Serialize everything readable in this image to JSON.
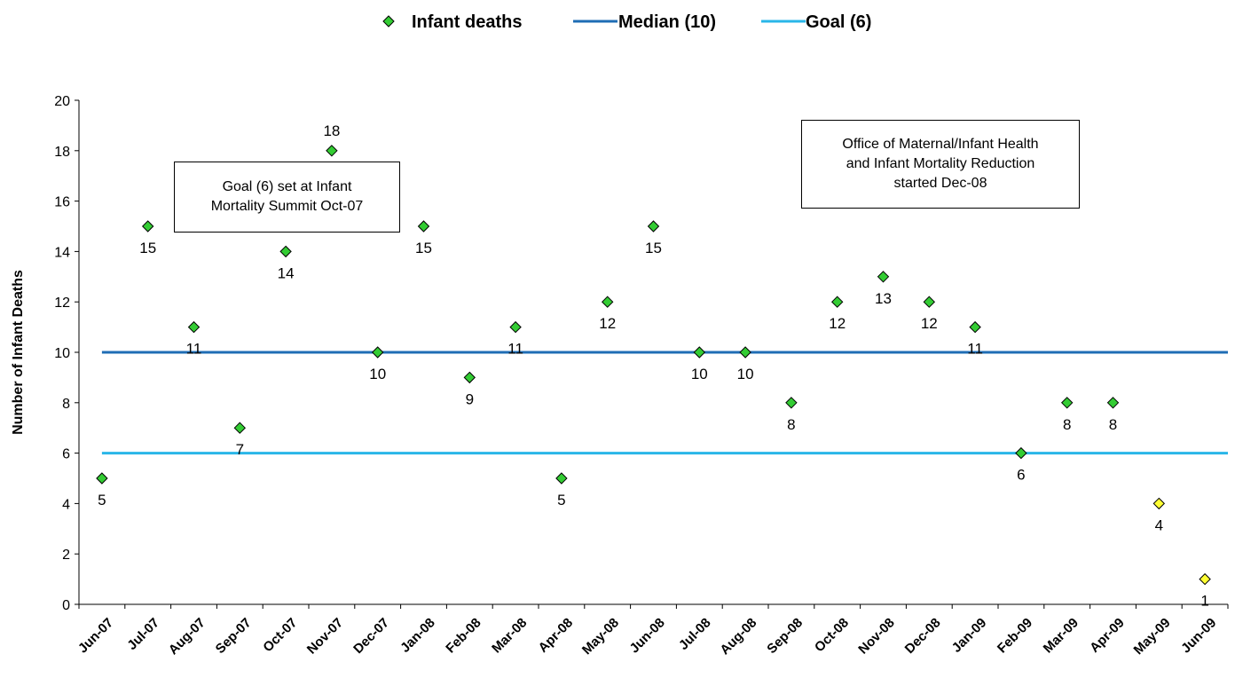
{
  "chart_data": {
    "type": "scatter",
    "title": "",
    "xlabel": "",
    "ylabel": "Number of Infant Deaths",
    "ylim": [
      0,
      20
    ],
    "yticks": [
      "0",
      "2",
      "4",
      "6",
      "8",
      "10",
      "12",
      "14",
      "16",
      "18",
      "20"
    ],
    "grid": false,
    "legend_position": "top-center",
    "categories": [
      "Jun-07",
      "Jul-07",
      "Aug-07",
      "Sep-07",
      "Oct-07",
      "Nov-07",
      "Dec-07",
      "Jan-08",
      "Feb-08",
      "Mar-08",
      "Apr-08",
      "May-08",
      "Jun-08",
      "Jul-08",
      "Aug-08",
      "Sep-08",
      "Oct-08",
      "Nov-08",
      "Dec-08",
      "Jan-09",
      "Feb-09",
      "Mar-09",
      "Apr-09",
      "May-09",
      "Jun-09"
    ],
    "series": [
      {
        "name": "Infant deaths",
        "marker": "diamond",
        "color": "#33cc33",
        "values": [
          5,
          15,
          11,
          7,
          14,
          18,
          10,
          15,
          9,
          11,
          5,
          12,
          15,
          10,
          10,
          8,
          12,
          13,
          12,
          11,
          6,
          8,
          8,
          4,
          1
        ],
        "point_colors": [
          "#33cc33",
          "#33cc33",
          "#33cc33",
          "#33cc33",
          "#33cc33",
          "#33cc33",
          "#33cc33",
          "#33cc33",
          "#33cc33",
          "#33cc33",
          "#33cc33",
          "#33cc33",
          "#33cc33",
          "#33cc33",
          "#33cc33",
          "#33cc33",
          "#33cc33",
          "#33cc33",
          "#33cc33",
          "#33cc33",
          "#33cc33",
          "#33cc33",
          "#33cc33",
          "#ffff33",
          "#ffff33"
        ],
        "data_labels": [
          "5",
          "15",
          "11",
          "7",
          "14",
          "18",
          "10",
          "15",
          "9",
          "11",
          "5",
          "12",
          "15",
          "10",
          "10",
          "8",
          "12",
          "13",
          "12",
          "11",
          "6",
          "8",
          "8",
          "4",
          "1"
        ],
        "label_position": [
          "below",
          "below",
          "below",
          "below",
          "below",
          "above",
          "below",
          "below",
          "below",
          "below",
          "below",
          "below",
          "below",
          "below",
          "below",
          "below",
          "below",
          "below",
          "below",
          "below",
          "below",
          "below",
          "below",
          "below",
          "below"
        ]
      },
      {
        "name": "Median (10)",
        "type": "line",
        "color": "#1f6db5",
        "values": [
          10,
          10,
          10,
          10,
          10,
          10,
          10,
          10,
          10,
          10,
          10,
          10,
          10,
          10,
          10,
          10,
          10,
          10,
          10,
          10,
          10,
          10,
          10,
          10,
          10
        ]
      },
      {
        "name": "Goal (6)",
        "type": "line",
        "color": "#29b6e8",
        "values": [
          6,
          6,
          6,
          6,
          6,
          6,
          6,
          6,
          6,
          6,
          6,
          6,
          6,
          6,
          6,
          6,
          6,
          6,
          6,
          6,
          6,
          6,
          6,
          6,
          6
        ]
      }
    ],
    "annotations": [
      {
        "lines": [
          "Goal (6) set at Infant",
          "Mortality Summit Oct-07"
        ]
      },
      {
        "lines": [
          "Office of Maternal/Infant Health",
          "and Infant Mortality Reduction",
          "started Dec-08"
        ]
      }
    ]
  }
}
